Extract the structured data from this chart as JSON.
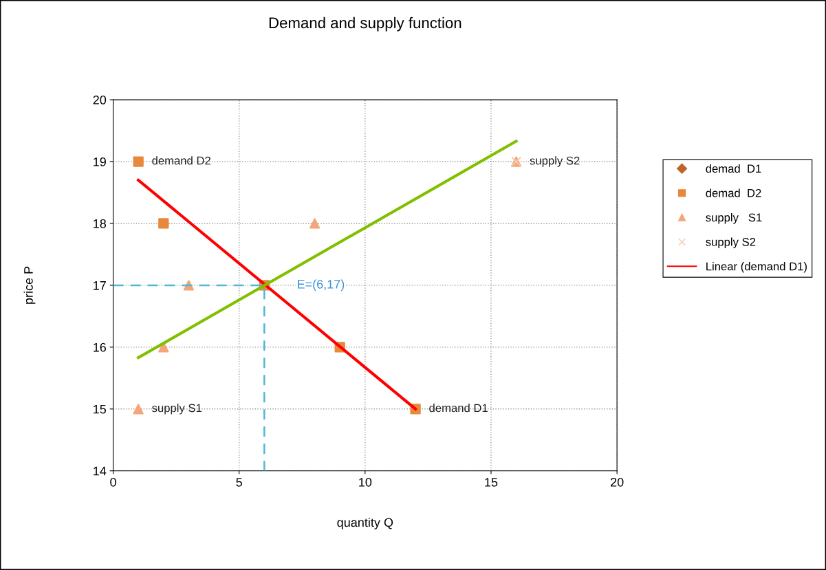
{
  "chart_data": {
    "type": "scatter",
    "title": "Demand and supply function",
    "xlabel": "quantity Q",
    "ylabel": "price P",
    "xlim": [
      0,
      20
    ],
    "xticks": [
      0,
      5,
      10,
      15,
      20
    ],
    "ylim": [
      14,
      20
    ],
    "yticks": [
      14,
      15,
      16,
      17,
      18,
      19,
      20
    ],
    "grid": true,
    "legend": "right",
    "series": [
      {
        "name": "demad  D1",
        "marker": "diamond",
        "color": "#c0652a"
      },
      {
        "name": "demad  D2",
        "marker": "square",
        "color": "#e8883a",
        "x": [
          1,
          2,
          6,
          9,
          12
        ],
        "values": [
          19,
          18,
          17,
          16,
          15
        ]
      },
      {
        "name": "supply   S1",
        "marker": "triangle",
        "color": "#f5a57a",
        "x": [
          1,
          2,
          3,
          8,
          16
        ],
        "values": [
          15,
          16,
          17,
          18,
          19
        ]
      },
      {
        "name": "supply S2",
        "marker": "cross",
        "color": "#f8c8b0",
        "x": [
          16
        ],
        "values": [
          19
        ]
      },
      {
        "name": "Linear (demand D1)",
        "type": "line",
        "marker": "none",
        "line_style": "solid",
        "color": "#ff0000",
        "x": [
          1,
          12
        ],
        "values": [
          18.7,
          15
        ]
      },
      {
        "type": "line",
        "marker": "none",
        "line_style": "solid",
        "color": "#80c000",
        "x": [
          1,
          16
        ],
        "values": [
          15.83,
          19.33
        ]
      },
      {
        "type": "line",
        "marker": "none",
        "line_style": "dashed",
        "color": "#4fb8d8",
        "x": [
          0,
          6,
          6
        ],
        "values": [
          17,
          17,
          14
        ]
      }
    ],
    "annotations": [
      {
        "text": "E=(6,17)",
        "x": 6,
        "y": 17
      },
      {
        "text": "demand D2",
        "x": 1,
        "y": 19
      },
      {
        "text": "supply S2",
        "x": 16,
        "y": 19
      },
      {
        "text": "supply S1",
        "x": 1,
        "y": 15
      },
      {
        "text": "demand D1",
        "x": 12,
        "y": 15
      }
    ]
  }
}
